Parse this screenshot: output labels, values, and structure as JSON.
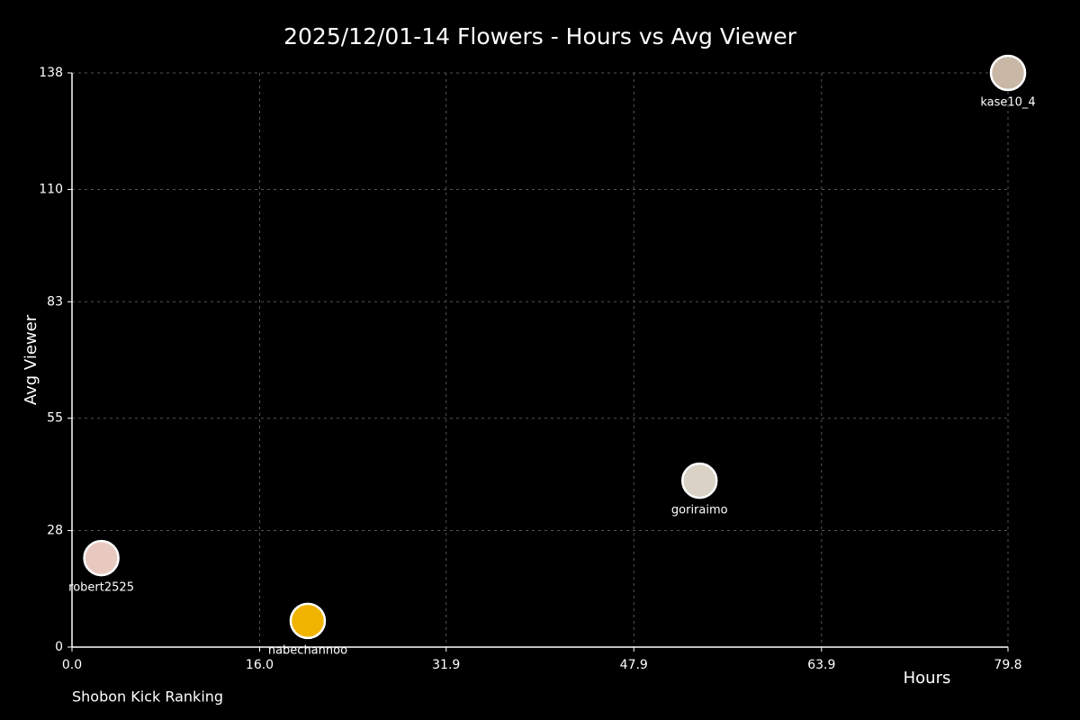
{
  "chart_data": {
    "type": "scatter",
    "title": "2025/12/01-14 Flowers - Hours vs Avg Viewer",
    "xlabel": "Hours",
    "ylabel": "Avg Viewer",
    "footer": "Shobon Kick Ranking",
    "points": [
      {
        "label": "robert2525",
        "x": 2.5,
        "y": 21.4,
        "color": "#e8c9c0"
      },
      {
        "label": "nabechannoo",
        "x": 20.1,
        "y": 6.3,
        "color": "#f0b400"
      },
      {
        "label": "goriraimo",
        "x": 53.5,
        "y": 40.0,
        "color": "#d9d2c5"
      },
      {
        "label": "kase10_4",
        "x": 79.8,
        "y": 138,
        "color": "#c9b8a6"
      }
    ],
    "xlim": [
      0,
      79.8
    ],
    "xticks": [
      {
        "value": 0,
        "label": "0.0"
      },
      {
        "value": 16,
        "label": "16.0"
      },
      31.9,
      47.9,
      63.9,
      79.8
    ],
    "ylim": [
      0,
      138
    ],
    "yticks": [
      0,
      28,
      55,
      83,
      110,
      138
    ],
    "grid": true
  }
}
